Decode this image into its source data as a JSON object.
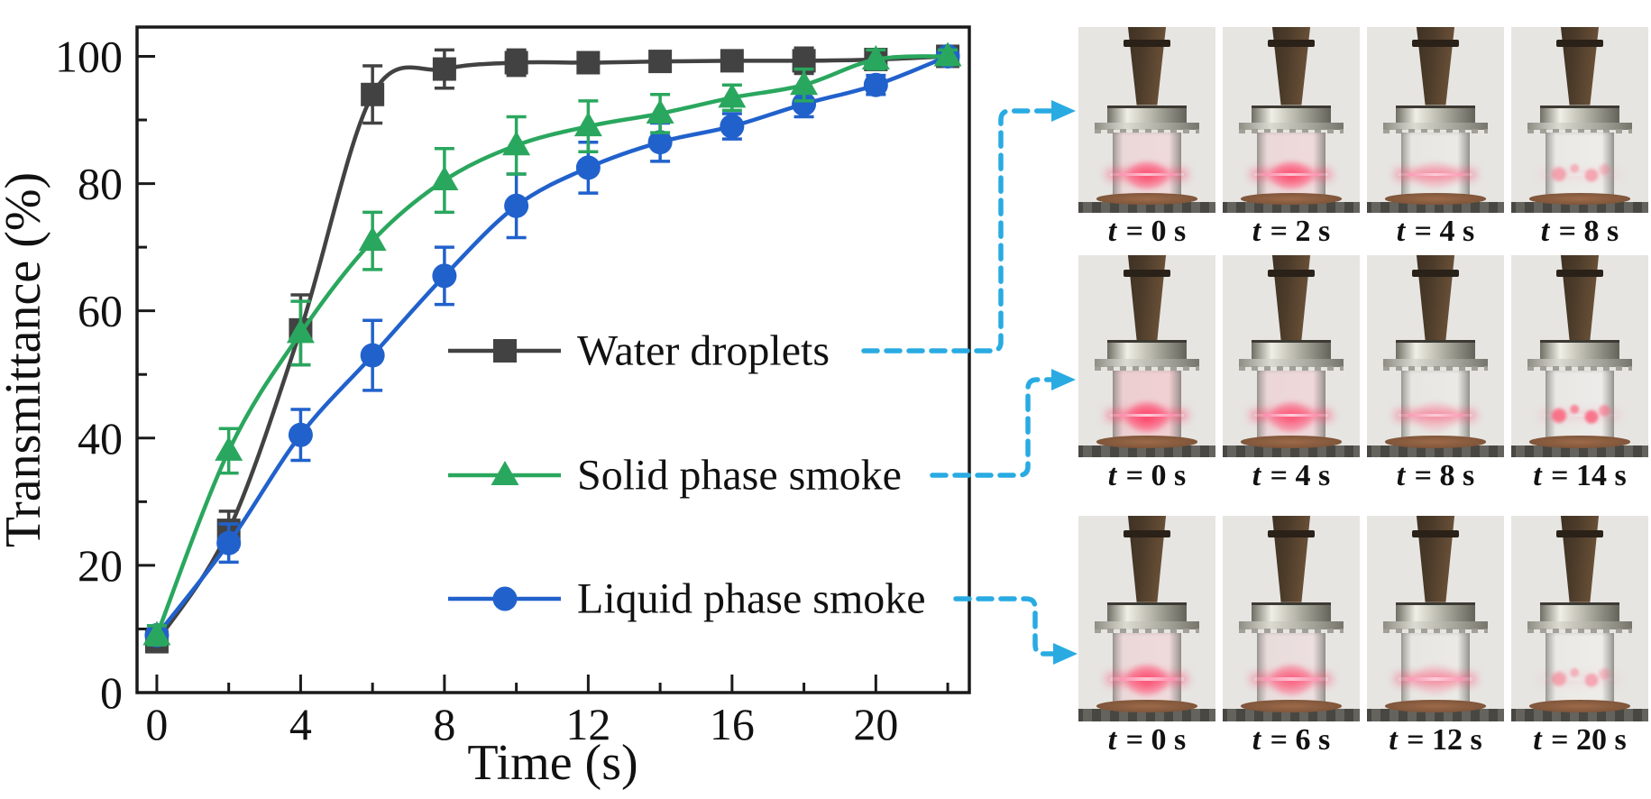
{
  "figure": {
    "background": "#ffffff"
  },
  "chart_data": {
    "type": "line",
    "title": "",
    "xlabel": "Time (s)",
    "ylabel": "Transmittance (%)",
    "xlim": [
      -0.55,
      22.6
    ],
    "ylim": [
      0,
      104.6
    ],
    "xticks": [
      0,
      4,
      8,
      12,
      16,
      20
    ],
    "yticks": [
      0,
      20,
      40,
      60,
      80,
      100
    ],
    "minor_xticks": [
      2,
      6,
      10,
      14,
      18,
      22
    ],
    "minor_yticks": [
      10,
      30,
      50,
      70,
      90
    ],
    "grid": false,
    "legend_position": "inside-right",
    "x": [
      0,
      2,
      4,
      6,
      8,
      10,
      12,
      14,
      16,
      18,
      20,
      22
    ],
    "series": [
      {
        "name": "Water droplets",
        "marker": "square",
        "color": "#424242",
        "values": [
          8,
          25.5,
          57,
          94,
          98,
          99,
          99,
          99.2,
          99.3,
          99.3,
          99.5,
          100
        ],
        "errors": [
          1.5,
          3,
          5.5,
          4.5,
          3,
          2,
          1.5,
          1.5,
          1.5,
          2,
          1.5,
          1
        ]
      },
      {
        "name": "Solid phase smoke",
        "marker": "triangle",
        "color": "#2aa75e",
        "values": [
          9,
          38,
          56.5,
          71,
          80.5,
          86,
          89,
          91,
          93.5,
          95.5,
          99.5,
          100
        ],
        "errors": [
          1.5,
          3.5,
          5,
          4.5,
          5,
          4.5,
          4,
          3,
          2,
          2.5,
          1.5,
          1
        ]
      },
      {
        "name": "Liquid phase smoke",
        "marker": "circle",
        "color": "#2161cc",
        "values": [
          9,
          23.5,
          40.5,
          53,
          65.5,
          76.5,
          82.5,
          86.5,
          89,
          92.5,
          95.5,
          100
        ],
        "errors": [
          1.5,
          3,
          4,
          5.5,
          4.5,
          5,
          4,
          3,
          2,
          2,
          1.5,
          1
        ]
      }
    ]
  },
  "connectors": {
    "color": "#29abe2",
    "style": "dashed-arrow",
    "links": [
      "Water droplets to photo row 1",
      "Solid phase smoke to photo row 2",
      "Liquid phase smoke to photo row 3"
    ]
  },
  "photo_panel": {
    "rows": [
      {
        "series": "Water droplets",
        "cells": [
          {
            "label": "t = 0 s",
            "glow": "ball-strong"
          },
          {
            "label": "t = 2 s",
            "glow": "ball-strong"
          },
          {
            "label": "t = 4 s",
            "glow": "line-medium"
          },
          {
            "label": "t = 8 s",
            "glow": "speckle-faint"
          }
        ]
      },
      {
        "series": "Solid phase smoke",
        "cells": [
          {
            "label": "t = 0 s",
            "glow": "ball-bright"
          },
          {
            "label": "t = 4 s",
            "glow": "ball-line"
          },
          {
            "label": "t = 8 s",
            "glow": "line-medium"
          },
          {
            "label": "t = 14 s",
            "glow": "speckle-medium"
          }
        ]
      },
      {
        "series": "Liquid phase smoke",
        "cells": [
          {
            "label": "t = 0 s",
            "glow": "ball-strong"
          },
          {
            "label": "t = 6 s",
            "glow": "ball-medium"
          },
          {
            "label": "t = 12 s",
            "glow": "line-medium"
          },
          {
            "label": "t = 20 s",
            "glow": "speckle-faint"
          }
        ]
      }
    ]
  }
}
